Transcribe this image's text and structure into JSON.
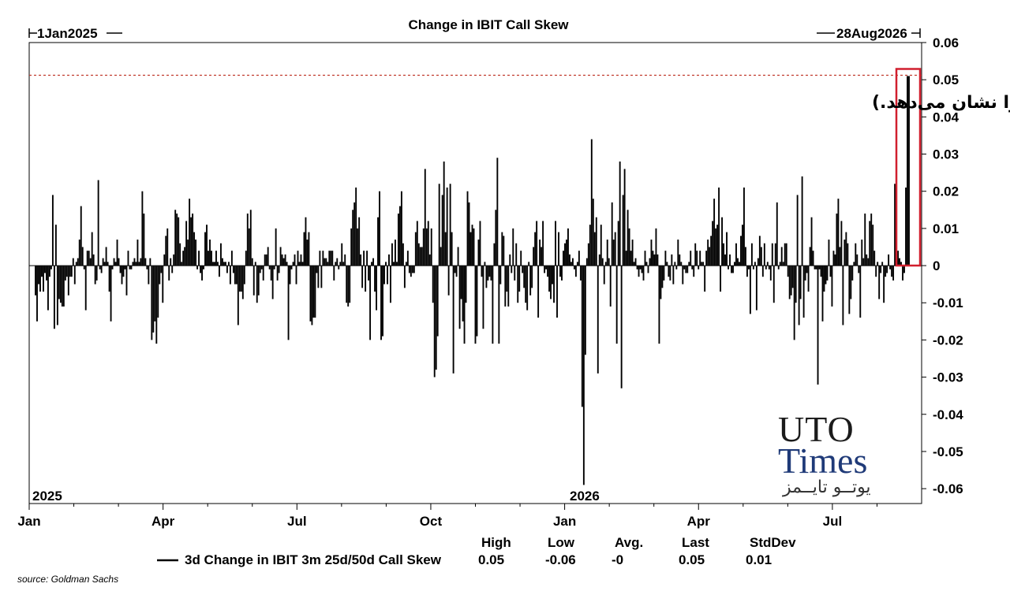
{
  "chart_data": {
    "type": "bar",
    "title": "Change in IBIT Call Skew",
    "range_start_label": "1Jan2025",
    "range_end_label": "28Aug2026",
    "year_labels": [
      "2025",
      "2026"
    ],
    "x_tick_labels": [
      "Jan",
      "Apr",
      "Jul",
      "Oct",
      "Jan",
      "Apr",
      "Jul"
    ],
    "y_tick_labels": [
      "0.06",
      "0.05",
      "0.04",
      "0.03",
      "0.02",
      "0.01",
      "0",
      "-0.01",
      "-0.02",
      "-0.03",
      "-0.04",
      "-0.05",
      "-0.06"
    ],
    "ylim": [
      -0.064,
      0.06
    ],
    "reference_line": 0.0512,
    "annotation": "(نمودار اختیار خرید IBIT، افزایش بی‌سابقه تقاضای صعودی برای این ETF را نشان می‌دهد.)",
    "series": [
      {
        "name": "3d Change in IBIT 3m 25d/50d Call Skew",
        "values": [
          -0.008,
          -0.015,
          -0.005,
          -0.007,
          -0.003,
          -0.007,
          -0.002,
          -0.004,
          -0.012,
          -0.003,
          -0.001,
          0.019,
          -0.017,
          0.011,
          -0.016,
          -0.009,
          -0.01,
          -0.011,
          -0.011,
          -0.004,
          -0.003,
          -0.008,
          -0.003,
          -0.003,
          0.002,
          -0.005,
          0.001,
          0.002,
          0.007,
          0.016,
          0.005,
          -0.001,
          -0.012,
          0.004,
          0.004,
          0.002,
          0.009,
          0.003,
          -0.005,
          -0.004,
          0.023,
          -0.001,
          -0.002,
          0.002,
          0.001,
          0.005,
          0.001,
          -0.007,
          -0.015,
          -0.001,
          0.002,
          0.001,
          0.007,
          0.002,
          -0.002,
          -0.005,
          -0.003,
          -0.001,
          -0.008,
          0.004,
          -0.001,
          -0.001,
          0.001,
          0.002,
          0.001,
          0.007,
          0.001,
          0.002,
          0.02,
          0.014,
          0.002,
          -0.001,
          -0.005,
          0.002,
          -0.02,
          -0.018,
          -0.015,
          -0.021,
          -0.014,
          -0.005,
          -0.002,
          -0.01,
          0.003,
          0.008,
          0.01,
          -0.004,
          0.002,
          -0.002,
          0.003,
          0.015,
          0.014,
          0.013,
          0.006,
          0.001,
          0.004,
          0.005,
          0.012,
          0.007,
          0.018,
          0.013,
          0.014,
          0.009,
          0.007,
          -0.001,
          0.004,
          -0.002,
          -0.004,
          -0.001,
          0.009,
          0.011,
          0.004,
          0.007,
          0.004,
          0.001,
          0.001,
          0.004,
          0.001,
          -0.003,
          0.006,
          0.002,
          0.001,
          0.001,
          -0.002,
          0.001,
          -0.005,
          0.004,
          -0.002,
          -0.005,
          -0.005,
          -0.016,
          -0.007,
          -0.007,
          -0.009,
          -0.005,
          0.004,
          0.014,
          0.01,
          0.015,
          0.002,
          -0.008,
          0.001,
          -0.01,
          -0.008,
          -0.002,
          -0.001,
          -0.004,
          0.003,
          0.003,
          0.005,
          -0.001,
          -0.004,
          -0.009,
          -0.001,
          0.01,
          -0.004,
          -0.002,
          0.005,
          0.003,
          0.002,
          0.003,
          0.001,
          -0.02,
          -0.005,
          -0.001,
          0.001,
          0.003,
          -0.005,
          0.004,
          0.001,
          0.003,
          0.001,
          0.009,
          0.013,
          0.007,
          0.009,
          -0.015,
          -0.016,
          -0.014,
          -0.014,
          -0.002,
          -0.006,
          0.004,
          -0.006,
          0.004,
          0.002,
          0.002,
          0.001,
          0.004,
          0.004,
          0.004,
          -0.004,
          0.001,
          0.002,
          -0.001,
          0.001,
          0.006,
          0.001,
          0.003,
          -0.01,
          -0.011,
          -0.01,
          0.01,
          0.015,
          0.017,
          0.021,
          0.01,
          0.013,
          0.003,
          -0.006,
          0.004,
          -0.007,
          0.004,
          -0.004,
          -0.02,
          0.001,
          0.002,
          -0.007,
          -0.012,
          0.013,
          0.02,
          -0.02,
          -0.019,
          -0.005,
          0.001,
          -0.005,
          0.003,
          -0.01,
          0.006,
          0.001,
          0.007,
          0.001,
          0.014,
          0.016,
          0.02,
          0.006,
          -0.006,
          0.001,
          0.004,
          -0.002,
          -0.003,
          -0.002,
          -0.002,
          0.009,
          0.012,
          0.006,
          0.005,
          0.005,
          0.01,
          0.026,
          0.01,
          0.012,
          0.003,
          0.01,
          -0.01,
          -0.03,
          -0.028,
          -0.019,
          0.022,
          0.005,
          0.019,
          0.028,
          0.009,
          0.021,
          -0.008,
          0.022,
          0.009,
          -0.029,
          -0.002,
          -0.003,
          0.005,
          -0.017,
          -0.009,
          -0.015,
          -0.021,
          -0.01,
          0.02,
          0.017,
          0.009,
          0.011,
          0.01,
          -0.021,
          -0.019,
          0.007,
          0.012,
          -0.003,
          -0.017,
          0.001,
          -0.006,
          -0.004,
          -0.003,
          -0.004,
          -0.021,
          0.006,
          0.015,
          0.029,
          -0.021,
          -0.005,
          0.009,
          0.008,
          -0.011,
          -0.007,
          -0.011,
          0.003,
          -0.002,
          0.01,
          -0.004,
          0.006,
          -0.01,
          -0.007,
          0.004,
          -0.002,
          -0.006,
          -0.01,
          -0.012,
          0.001,
          -0.008,
          -0.006,
          0.005,
          0.009,
          0.012,
          -0.014,
          0.007,
          0.005,
          0.012,
          -0.002,
          -0.001,
          -0.003,
          -0.007,
          -0.009,
          -0.005,
          -0.01,
          0.012,
          -0.014,
          0.009,
          -0.003,
          -0.004,
          0.004,
          0.006,
          0.007,
          0.01,
          0.003,
          0.001,
          0.002,
          -0.001,
          -0.003,
          0.001,
          0.004,
          -0.004,
          -0.038,
          -0.059,
          -0.024,
          0.002,
          0.006,
          0.011,
          0.034,
          0.018,
          0.009,
          0.013,
          -0.029,
          0.003,
          0.011,
          0.002,
          -0.005,
          0.001,
          0.007,
          0.002,
          -0.011,
          0.017,
          0.007,
          0.009,
          -0.021,
          0.012,
          0.028,
          -0.033,
          0.019,
          0.026,
          0.004,
          0.015,
          0.01,
          0.004,
          0.007,
          0.001,
          0.002,
          -0.001,
          -0.003,
          -0.001,
          -0.002,
          -0.004,
          0.004,
          0.001,
          -0.002,
          0.002,
          0.007,
          0.004,
          0.003,
          0.01,
          0.003,
          -0.021,
          -0.009,
          -0.006,
          -0.004,
          0.004,
          0.001,
          -0.003,
          -0.004,
          0.003,
          -0.005,
          0.001,
          -0.001,
          0.007,
          0.003,
          0.001,
          -0.005,
          -0.001,
          -0.002,
          -0.002,
          0.001,
          0.004,
          -0.001,
          -0.003,
          0.006,
          0.004,
          -0.001,
          0.004,
          0.001,
          0.001,
          -0.007,
          0.004,
          0.007,
          0.005,
          0.008,
          0.012,
          0.018,
          0.01,
          0.011,
          0.021,
          -0.007,
          0.013,
          0.006,
          0.003,
          0.009,
          -0.001,
          0.003,
          -0.002,
          -0.002,
          0.001,
          0.006,
          0.002,
          0.001,
          0.008,
          0.011,
          0.021,
          0.005,
          -0.003,
          -0.001,
          -0.013,
          0.006,
          -0.001,
          0.001,
          -0.012,
          0.002,
          0.008,
          0.005,
          -0.003,
          0.006,
          -0.001,
          0.001,
          -0.001,
          -0.004,
          0.006,
          -0.01,
          0.006,
          0.017,
          -0.001,
          0.001,
          0.005,
          0.001,
          0.006,
          0.006,
          -0.003,
          -0.009,
          -0.008,
          -0.006,
          -0.02,
          -0.01,
          0.019,
          -0.016,
          -0.009,
          0.024,
          -0.014,
          -0.004,
          -0.002,
          -0.007,
          0.005,
          0.013,
          0.004,
          -0.001,
          -0.001,
          -0.032,
          -0.001,
          -0.003,
          -0.015,
          -0.007,
          -0.005,
          -0.004,
          0.007,
          -0.003,
          -0.011,
          0.004,
          0.003,
          0.014,
          0.018,
          0.005,
          0.012,
          -0.016,
          0.007,
          0.009,
          0.006,
          -0.013,
          -0.009,
          -0.004,
          0.001,
          0.006,
          0.003,
          -0.002,
          -0.014,
          0.007,
          0.002,
          0.014,
          0.003,
          0.002,
          0.012,
          0.014,
          0.011,
          0.004,
          -0.003,
          0.001,
          -0.009,
          -0.002,
          0.001,
          -0.01,
          -0.003,
          -0.002,
          0.003,
          -0.001,
          -0.003,
          -0.004,
          0.022,
          0.028,
          0.004,
          0.002,
          0.001,
          -0.004,
          -0.002,
          0.021,
          0.051,
          0.051
        ]
      }
    ],
    "stats_headers": [
      "High",
      "Low",
      "Avg.",
      "Last",
      "StdDev"
    ],
    "stats_values": [
      "0.05",
      "-0.06",
      "-0",
      "0.05",
      "0.01"
    ],
    "source": "source: Goldman Sachs"
  },
  "logo": {
    "line1": "UTO",
    "line2": "Times",
    "line3": "یوتــو تایــمز"
  },
  "colors": {
    "bar": "#000000",
    "reference_line": "#c0392b",
    "highlight_box": "#d11f2e",
    "logo_blue": "#1f3a78"
  }
}
